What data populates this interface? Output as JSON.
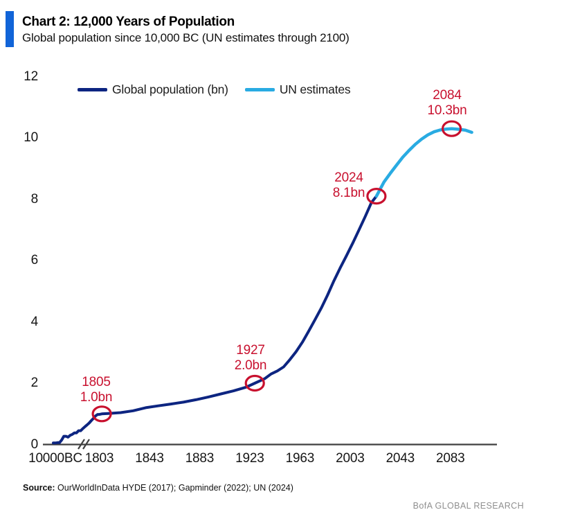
{
  "header": {
    "title": "Chart 2: 12,000 Years of Population",
    "subtitle": "Global population since 10,000 BC (UN estimates through 2100)"
  },
  "footer": {
    "source_label": "Source:",
    "source_text": " OurWorldInData HYDE (2017); Gapminder (2022); UN (2024)",
    "brand": "BofA GLOBAL RESEARCH"
  },
  "colors": {
    "title_bar_blue": "#1164d8",
    "historical_line_navy": "#0d2581",
    "un_estimates_light_blue": "#29abe2",
    "marker_red": "#c8102e",
    "axis_gray": "#3f3f3f",
    "brand_gray": "#8f8f8f"
  },
  "chart_data": {
    "type": "line",
    "title": "Chart 2: 12,000 Years of Population",
    "subtitle": "Global population since 10,000 BC (UN estimates through 2100)",
    "ylabel": "",
    "xlabel": "",
    "ylim": [
      0,
      12
    ],
    "yticks": [
      0,
      2,
      4,
      6,
      8,
      10,
      12
    ],
    "xticks": [
      "10000BC",
      "1803",
      "1843",
      "1883",
      "1923",
      "1963",
      "2003",
      "2043",
      "2083"
    ],
    "x_axis_break_after_first_tick": true,
    "grid": false,
    "legend_position": "top",
    "series": [
      {
        "name": "Global population (bn)",
        "color": "#0d2581",
        "pre_1803_compressed_segment_bn": [
          0.05,
          0.05,
          0.06,
          0.06,
          0.15,
          0.27,
          0.27,
          0.24,
          0.3,
          0.33,
          0.38,
          0.38,
          0.45,
          0.45,
          0.52,
          0.58,
          0.64,
          0.7,
          0.78,
          0.85,
          0.93,
          0.98
        ],
        "points": [
          [
            1803,
            0.98
          ],
          [
            1805,
            1.0
          ],
          [
            1810,
            1.01
          ],
          [
            1820,
            1.04
          ],
          [
            1830,
            1.1
          ],
          [
            1840,
            1.2
          ],
          [
            1850,
            1.26
          ],
          [
            1860,
            1.32
          ],
          [
            1870,
            1.38
          ],
          [
            1880,
            1.46
          ],
          [
            1890,
            1.55
          ],
          [
            1900,
            1.65
          ],
          [
            1910,
            1.75
          ],
          [
            1920,
            1.87
          ],
          [
            1927,
            2.0
          ],
          [
            1935,
            2.15
          ],
          [
            1940,
            2.3
          ],
          [
            1945,
            2.4
          ],
          [
            1950,
            2.53
          ],
          [
            1955,
            2.77
          ],
          [
            1960,
            3.03
          ],
          [
            1965,
            3.34
          ],
          [
            1970,
            3.7
          ],
          [
            1975,
            4.07
          ],
          [
            1980,
            4.45
          ],
          [
            1985,
            4.87
          ],
          [
            1990,
            5.33
          ],
          [
            1995,
            5.75
          ],
          [
            2000,
            6.15
          ],
          [
            2005,
            6.56
          ],
          [
            2010,
            6.99
          ],
          [
            2015,
            7.43
          ],
          [
            2020,
            7.89
          ],
          [
            2024,
            8.1
          ]
        ]
      },
      {
        "name": "UN estimates",
        "color": "#29abe2",
        "points": [
          [
            2024,
            8.1
          ],
          [
            2030,
            8.56
          ],
          [
            2035,
            8.84
          ],
          [
            2040,
            9.11
          ],
          [
            2045,
            9.37
          ],
          [
            2050,
            9.59
          ],
          [
            2055,
            9.79
          ],
          [
            2060,
            9.96
          ],
          [
            2065,
            10.1
          ],
          [
            2070,
            10.2
          ],
          [
            2075,
            10.26
          ],
          [
            2080,
            10.29
          ],
          [
            2084,
            10.3
          ],
          [
            2090,
            10.28
          ],
          [
            2095,
            10.25
          ],
          [
            2100,
            10.18
          ]
        ]
      }
    ],
    "markers": [
      {
        "year": 1805,
        "value": 1.0,
        "label_year": "1805",
        "label_value": "1.0bn"
      },
      {
        "year": 1927,
        "value": 2.0,
        "label_year": "1927",
        "label_value": "2.0bn"
      },
      {
        "year": 2024,
        "value": 8.1,
        "label_year": "2024",
        "label_value": "8.1bn"
      },
      {
        "year": 2084,
        "value": 10.3,
        "label_year": "2084",
        "label_value": "10.3bn"
      }
    ]
  }
}
